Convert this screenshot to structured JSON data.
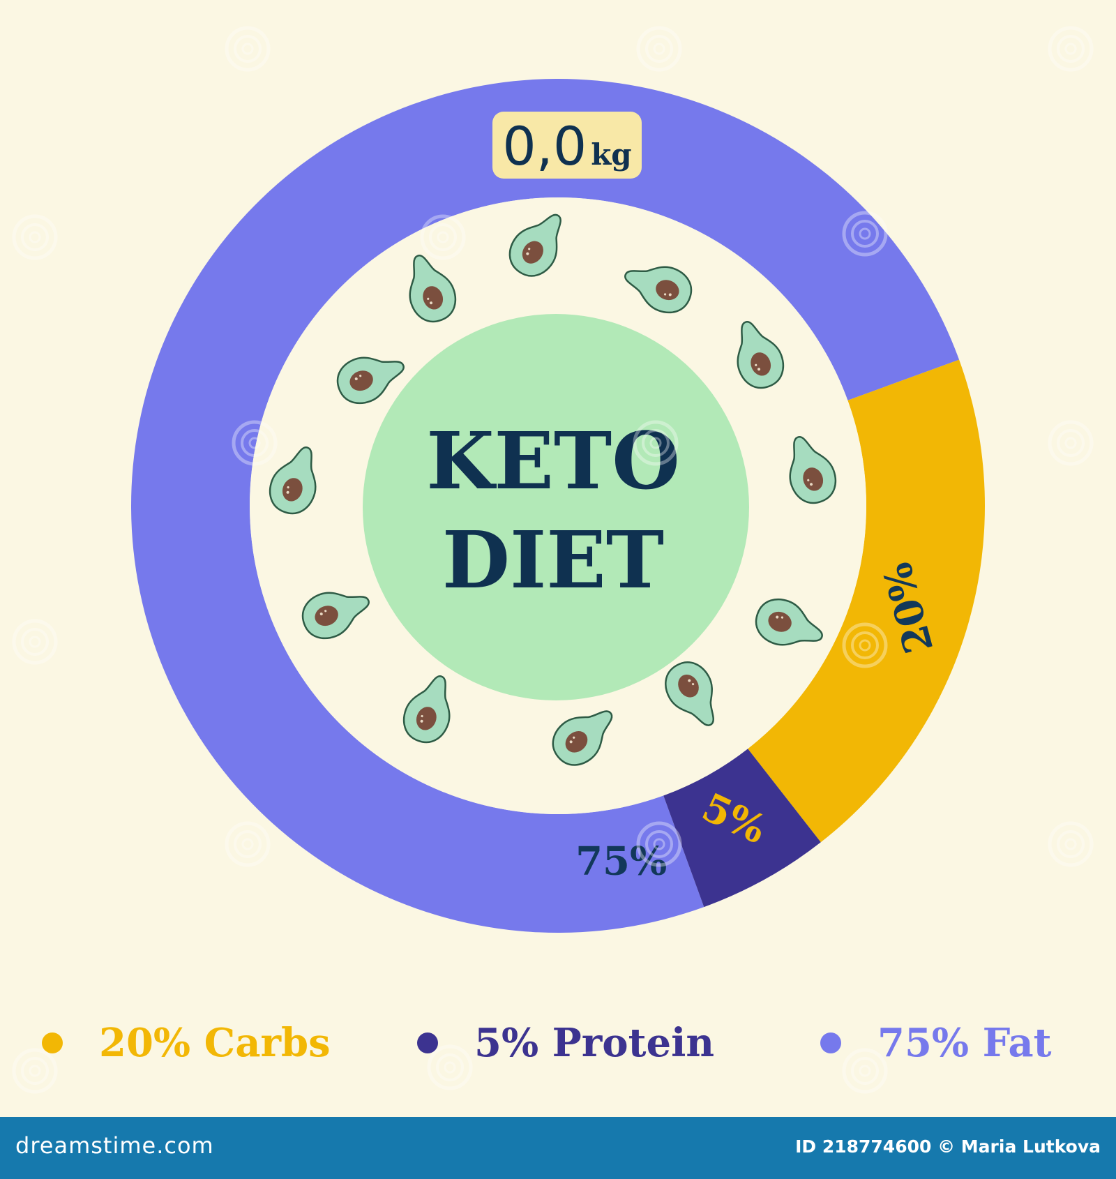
{
  "chart_data": {
    "type": "pie",
    "style": "donut",
    "title": "KETO DIET",
    "badge": "0,0kg",
    "badge_value": "0,0",
    "badge_unit": "kg",
    "slices": [
      {
        "name": "Fat",
        "value": 75,
        "label": "75%",
        "color": "#7679ec",
        "label_color": "#12385a"
      },
      {
        "name": "Carbs",
        "value": 20,
        "label": "20%",
        "color": "#f2b705",
        "label_color": "#12385a"
      },
      {
        "name": "Protein",
        "value": 5,
        "label": "5%",
        "color": "#3c3390",
        "label_color": "#f2b705"
      }
    ],
    "legend": {
      "placement": "bottom",
      "items": [
        {
          "text": "20%  Carbs",
          "color": "#f2b705"
        },
        {
          "text": "5%  Protein",
          "color": "#3c3390"
        },
        {
          "text": "75% Fat",
          "color": "#7679ec"
        }
      ]
    }
  },
  "colors": {
    "background": "#fbf7e3",
    "center_circle": "#b2e9b7",
    "title": "#0f3150",
    "badge_bg": "#f8e8a7",
    "avocado_flesh": "#a6dcbf",
    "avocado_pit": "#7b4f3e"
  },
  "footer": {
    "brand": "dreamstime.com",
    "credit": "ID 218774600 © Maria Lutkova"
  },
  "watermark_icon": "spiral-watermark-icon"
}
